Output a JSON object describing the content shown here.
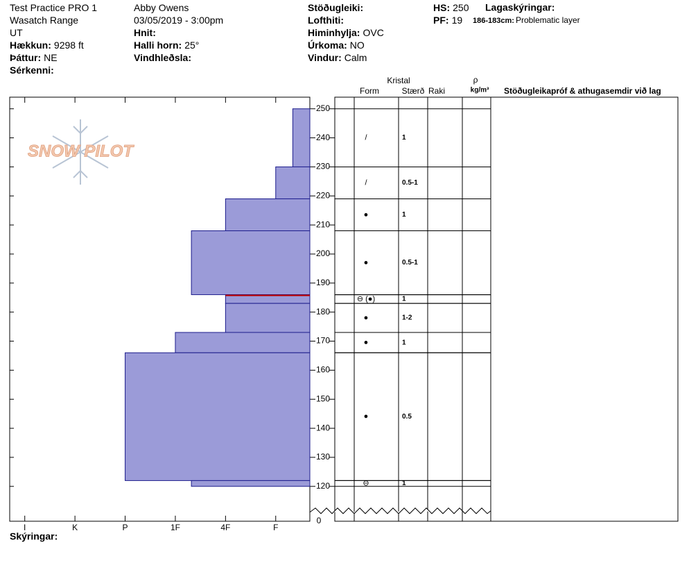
{
  "header": {
    "col1": [
      {
        "value": "Test Practice PRO 1"
      },
      {
        "value": "Wasatch Range"
      },
      {
        "value": "UT"
      },
      {
        "label": "Hækkun:",
        "value": "9298 ft"
      },
      {
        "label": "Þáttur:",
        "value": "NE"
      },
      {
        "label": "Sérkenni:"
      }
    ],
    "col2": [
      {
        "value": "Abby Owens"
      },
      {
        "value": "03/05/2019 - 3:00pm"
      },
      {
        "label": "Hnit:"
      },
      {
        "label": "Halli horn:",
        "value": "25°"
      },
      {
        "label": "Vindhleðsla:"
      }
    ],
    "col3": [
      {
        "label": "Stöðugleiki:"
      },
      {
        "label": "Lofthiti:"
      },
      {
        "label": "Himinhylja:",
        "value": "OVC"
      },
      {
        "label": "Úrkoma:",
        "value": "NO"
      },
      {
        "label": "Vindur:",
        "value": "Calm"
      }
    ],
    "col4": [
      {
        "label": "HS:",
        "value": 250
      },
      {
        "label": "PF:",
        "value": 19
      }
    ],
    "legend": {
      "title": "Lagaskýringar:",
      "items": [
        {
          "label": "186-183cm:",
          "value": "Problematic layer"
        }
      ]
    }
  },
  "logo": "SNOW PILOT",
  "columns": {
    "crystal": "Kristal",
    "form": "Form",
    "size": "Stærð",
    "moisture": "Raki",
    "density": "ρ",
    "density_unit": "kg/m³",
    "comments": "Stöðugleikapróf & athugasemdir við lag"
  },
  "footer": "Skýringar:",
  "chart_data": {
    "type": "snowpit",
    "layer_top": [
      250,
      230,
      219,
      208,
      186,
      183,
      173,
      166,
      122
    ],
    "layer_bottom": [
      230,
      219,
      208,
      186,
      183,
      173,
      166,
      122,
      120
    ],
    "hardness": [
      0.66,
      1,
      2,
      2.68,
      2,
      2,
      3,
      4,
      2.68
    ],
    "grain_form": [
      "/",
      "/",
      "●",
      "●",
      "⊖ (●)",
      "●",
      "●",
      "●",
      "⊖"
    ],
    "grain_size": [
      "1",
      "0.5-1",
      "1",
      "0.5-1",
      "1",
      "1-2",
      "1",
      "0.5",
      "1"
    ],
    "problematic": [
      false,
      false,
      false,
      false,
      true,
      false,
      false,
      false,
      false
    ],
    "color": "#9b9bd8",
    "edge_color": "#1c1c8c",
    "problem_color": "#c00000",
    "xlim": [
      6.3,
      0.32
    ],
    "xticks": [
      {
        "value": 6,
        "label": "I"
      },
      {
        "value": 5,
        "label": "K"
      },
      {
        "value": 4,
        "label": "P"
      },
      {
        "value": 3,
        "label": "1F"
      },
      {
        "value": 2,
        "label": "4F"
      },
      {
        "value": 1,
        "label": "F"
      }
    ],
    "ylim": [
      108,
      254
    ],
    "yticks": [
      120,
      130,
      140,
      150,
      160,
      170,
      180,
      190,
      200,
      210,
      220,
      230,
      240,
      250
    ],
    "ybreak": 0
  }
}
